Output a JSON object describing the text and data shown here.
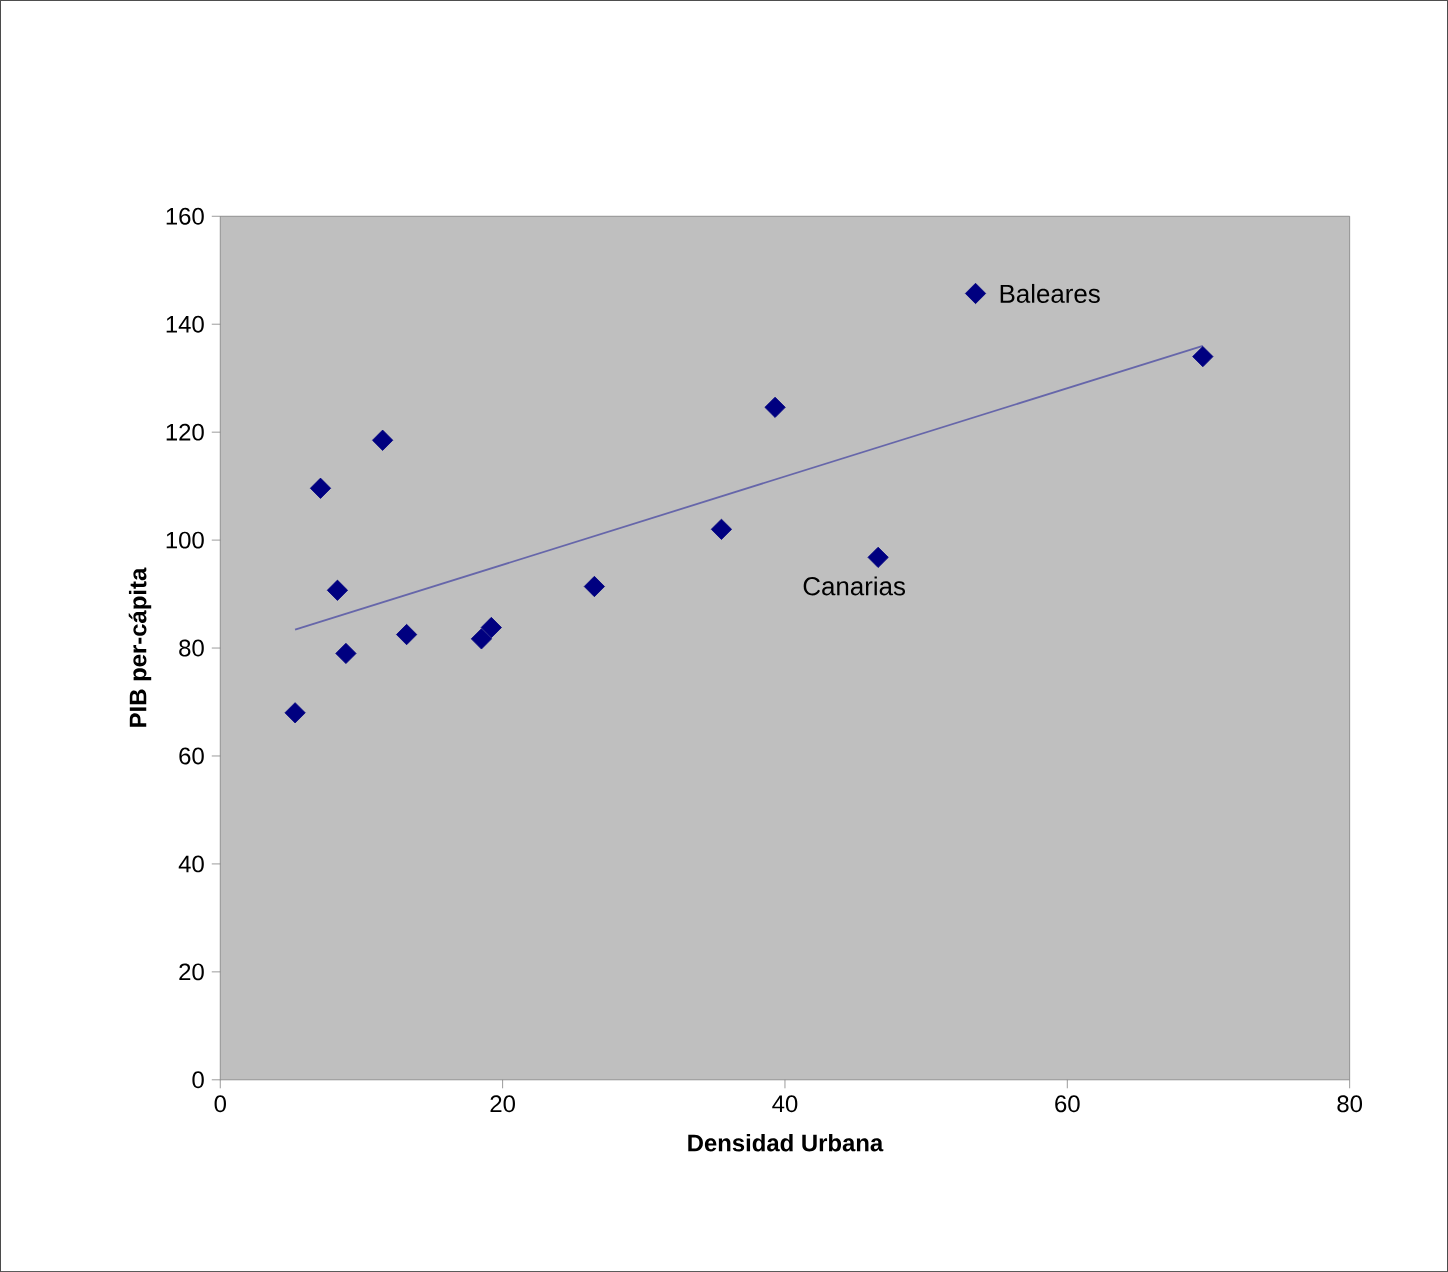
{
  "chart_data": {
    "type": "scatter",
    "xlabel": "Densidad Urbana",
    "ylabel": "PIB per-cápita",
    "xlim": [
      0,
      80
    ],
    "ylim": [
      0,
      160
    ],
    "xticks": [
      0,
      20,
      40,
      60,
      80
    ],
    "yticks": [
      0,
      20,
      40,
      60,
      80,
      100,
      120,
      140,
      160
    ],
    "grid": false,
    "series": [
      {
        "color": "#000080",
        "marker": "diamond",
        "x": [
          5.3,
          7.1,
          8.3,
          8.9,
          11.5,
          13.2,
          18.5,
          19.2,
          26.5,
          35.5,
          39.3,
          46.6,
          53.5,
          69.6
        ],
        "values": [
          68,
          109.6,
          90.7,
          79,
          118.5,
          82.5,
          81.7,
          83.8,
          91.4,
          102,
          124.6,
          96.8,
          145.7,
          134
        ]
      },
      {
        "type": "line",
        "marker": "none",
        "color": "#6666aa",
        "x": [
          5.3,
          69.6
        ],
        "values": [
          83.4,
          136
        ]
      }
    ],
    "annotations": [
      {
        "text": "Baleares",
        "x": 53.5,
        "y": 145.7
      },
      {
        "text": "Canarias",
        "x": 46.6,
        "y": 96.8
      }
    ]
  }
}
